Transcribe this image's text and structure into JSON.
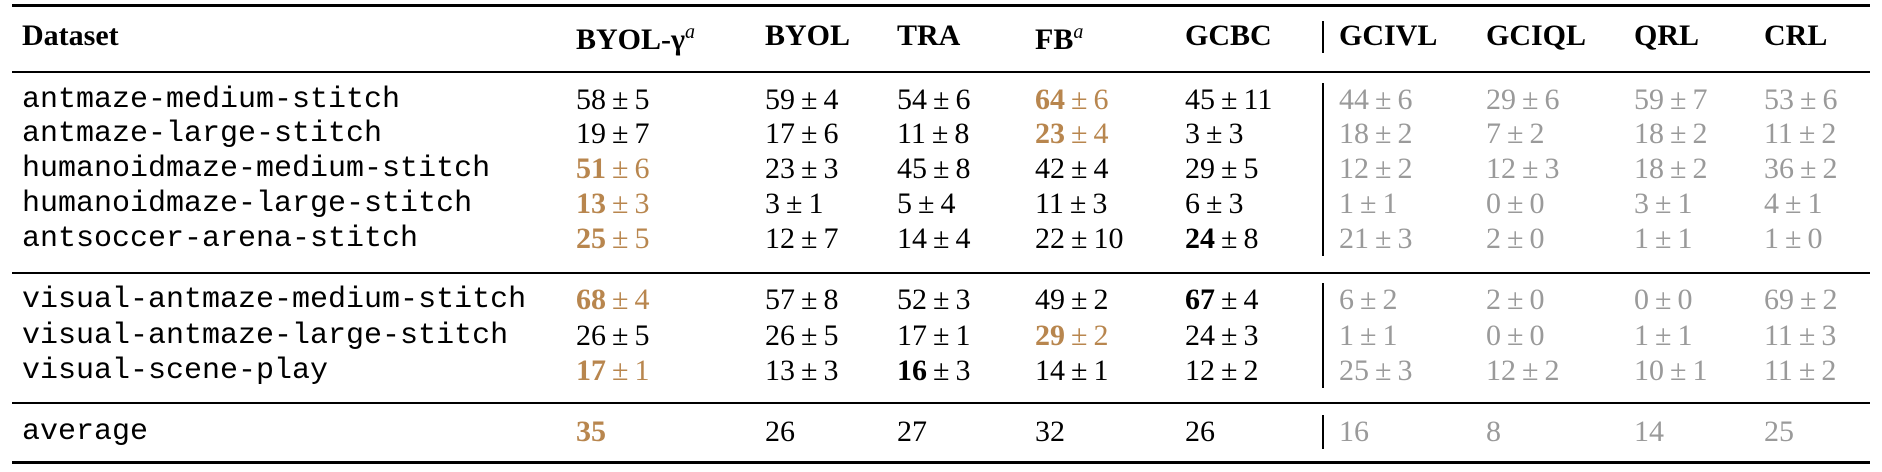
{
  "table": {
    "plus_minus": "±",
    "header": [
      {
        "text": "Dataset"
      },
      {
        "text": "BYOL-γ",
        "sup": "a"
      },
      {
        "text": "BYOL"
      },
      {
        "text": "TRA"
      },
      {
        "text": "FB",
        "sup": "a"
      },
      {
        "text": "GCBC"
      },
      {
        "text": "GCIVL",
        "muted": true
      },
      {
        "text": "GCIQL",
        "muted": true
      },
      {
        "text": "QRL",
        "muted": true
      },
      {
        "text": "CRL",
        "muted": true
      }
    ],
    "groups": [
      [
        {
          "name": "antmaze-medium-stitch",
          "cells": [
            {
              "mean": 58,
              "std": 5
            },
            {
              "mean": 59,
              "std": 4
            },
            {
              "mean": 54,
              "std": 6
            },
            {
              "mean": 64,
              "std": 6,
              "style": "gold"
            },
            {
              "mean": 45,
              "std": 11
            },
            {
              "mean": 44,
              "std": 6
            },
            {
              "mean": 29,
              "std": 6
            },
            {
              "mean": 59,
              "std": 7
            },
            {
              "mean": 53,
              "std": 6
            }
          ]
        },
        {
          "name": "antmaze-large-stitch",
          "cells": [
            {
              "mean": 19,
              "std": 7
            },
            {
              "mean": 17,
              "std": 6
            },
            {
              "mean": 11,
              "std": 8
            },
            {
              "mean": 23,
              "std": 4,
              "style": "gold"
            },
            {
              "mean": 3,
              "std": 3
            },
            {
              "mean": 18,
              "std": 2
            },
            {
              "mean": 7,
              "std": 2
            },
            {
              "mean": 18,
              "std": 2
            },
            {
              "mean": 11,
              "std": 2
            }
          ]
        },
        {
          "name": "humanoidmaze-medium-stitch",
          "cells": [
            {
              "mean": 51,
              "std": 6,
              "style": "gold"
            },
            {
              "mean": 23,
              "std": 3
            },
            {
              "mean": 45,
              "std": 8
            },
            {
              "mean": 42,
              "std": 4
            },
            {
              "mean": 29,
              "std": 5
            },
            {
              "mean": 12,
              "std": 2
            },
            {
              "mean": 12,
              "std": 3
            },
            {
              "mean": 18,
              "std": 2
            },
            {
              "mean": 36,
              "std": 2
            }
          ]
        },
        {
          "name": "humanoidmaze-large-stitch",
          "cells": [
            {
              "mean": 13,
              "std": 3,
              "style": "gold"
            },
            {
              "mean": 3,
              "std": 1
            },
            {
              "mean": 5,
              "std": 4
            },
            {
              "mean": 11,
              "std": 3
            },
            {
              "mean": 6,
              "std": 3
            },
            {
              "mean": 1,
              "std": 1
            },
            {
              "mean": 0,
              "std": 0
            },
            {
              "mean": 3,
              "std": 1
            },
            {
              "mean": 4,
              "std": 1
            }
          ]
        },
        {
          "name": "antsoccer-arena-stitch",
          "cells": [
            {
              "mean": 25,
              "std": 5,
              "style": "gold"
            },
            {
              "mean": 12,
              "std": 7
            },
            {
              "mean": 14,
              "std": 4
            },
            {
              "mean": 22,
              "std": 10
            },
            {
              "mean": 24,
              "std": 8,
              "style": "bold"
            },
            {
              "mean": 21,
              "std": 3
            },
            {
              "mean": 2,
              "std": 0
            },
            {
              "mean": 1,
              "std": 1
            },
            {
              "mean": 1,
              "std": 0
            }
          ]
        }
      ],
      [
        {
          "name": "visual-antmaze-medium-stitch",
          "cells": [
            {
              "mean": 68,
              "std": 4,
              "style": "gold"
            },
            {
              "mean": 57,
              "std": 8
            },
            {
              "mean": 52,
              "std": 3
            },
            {
              "mean": 49,
              "std": 2
            },
            {
              "mean": 67,
              "std": 4,
              "style": "bold"
            },
            {
              "mean": 6,
              "std": 2
            },
            {
              "mean": 2,
              "std": 0
            },
            {
              "mean": 0,
              "std": 0
            },
            {
              "mean": 69,
              "std": 2
            }
          ]
        },
        {
          "name": "visual-antmaze-large-stitch",
          "cells": [
            {
              "mean": 26,
              "std": 5
            },
            {
              "mean": 26,
              "std": 5
            },
            {
              "mean": 17,
              "std": 1
            },
            {
              "mean": 29,
              "std": 2,
              "style": "gold"
            },
            {
              "mean": 24,
              "std": 3
            },
            {
              "mean": 1,
              "std": 1
            },
            {
              "mean": 0,
              "std": 0
            },
            {
              "mean": 1,
              "std": 1
            },
            {
              "mean": 11,
              "std": 3
            }
          ]
        },
        {
          "name": "visual-scene-play",
          "cells": [
            {
              "mean": 17,
              "std": 1,
              "style": "gold"
            },
            {
              "mean": 13,
              "std": 3
            },
            {
              "mean": 16,
              "std": 3,
              "style": "bold"
            },
            {
              "mean": 14,
              "std": 1
            },
            {
              "mean": 12,
              "std": 2
            },
            {
              "mean": 25,
              "std": 3
            },
            {
              "mean": 12,
              "std": 2
            },
            {
              "mean": 10,
              "std": 1
            },
            {
              "mean": 11,
              "std": 2
            }
          ]
        }
      ],
      [
        {
          "name": "average",
          "cells": [
            {
              "mean": 35,
              "style": "gold"
            },
            {
              "mean": 26
            },
            {
              "mean": 27
            },
            {
              "mean": 32
            },
            {
              "mean": 26
            },
            {
              "mean": 16
            },
            {
              "mean": 8
            },
            {
              "mean": 14
            },
            {
              "mean": 25
            }
          ]
        }
      ]
    ]
  }
}
